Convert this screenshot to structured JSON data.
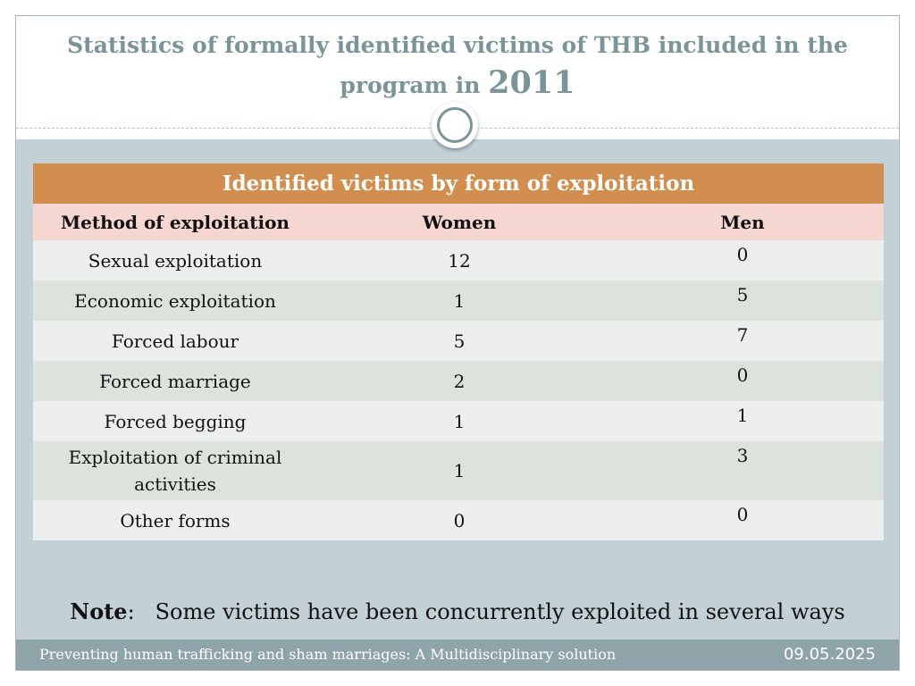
{
  "title": {
    "line": "Statistics of formally identified victims of THB included in the program in",
    "year": "2011"
  },
  "table": {
    "caption": "Identified victims by form of exploitation",
    "columns": [
      "Method of exploitation",
      "Women",
      "Men"
    ],
    "rows": [
      {
        "method": "Sexual exploitation",
        "women": "12",
        "men": "0"
      },
      {
        "method": "Economic exploitation",
        "women": "1",
        "men": "5"
      },
      {
        "method": "Forced labour",
        "women": "5",
        "men": "7"
      },
      {
        "method": "Forced marriage",
        "women": "2",
        "men": "0"
      },
      {
        "method": "Forced begging",
        "women": "1",
        "men": "1"
      },
      {
        "method": "Exploitation of criminal activities",
        "women": "1",
        "men": "3"
      },
      {
        "method": "Other forms",
        "women": "0",
        "men": "0"
      }
    ]
  },
  "note": {
    "label": "Note",
    "text": "Some victims have been concurrently exploited in several ways"
  },
  "footer": {
    "text": "Preventing human trafficking and sham marriages: A Multidisciplinary solution",
    "date": "09.05.2025"
  }
}
